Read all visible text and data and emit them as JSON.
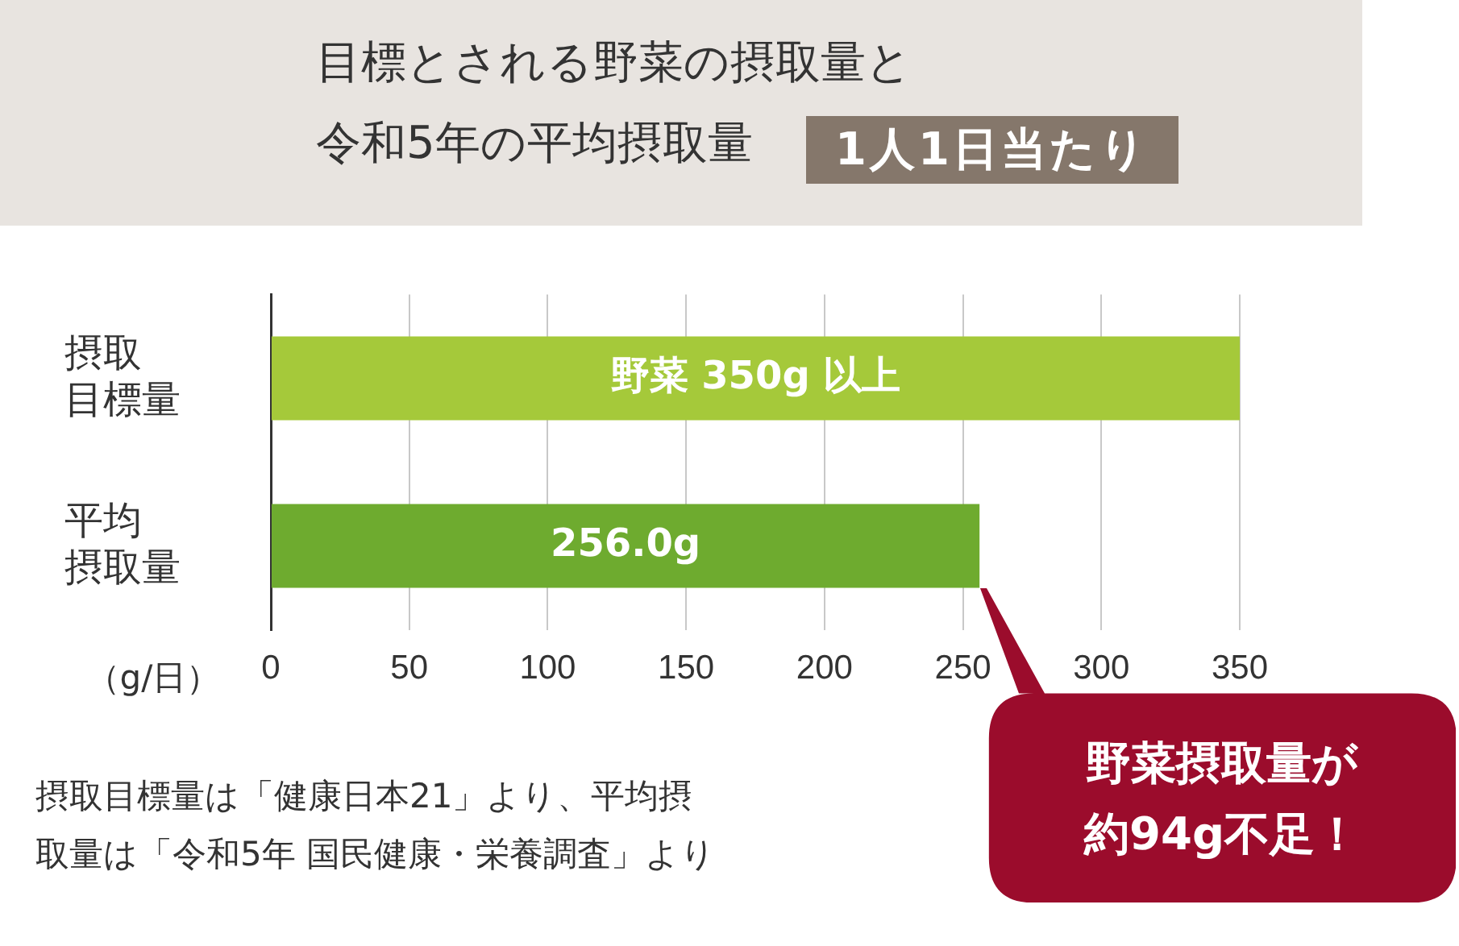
{
  "chart_data": {
    "type": "bar",
    "orientation": "horizontal",
    "title": "目標とされる野菜の摂取量と令和5年の平均摂取量",
    "subtitle": "1人1日当たり",
    "xlabel": "（g/日）",
    "categories": [
      "摂取目標量",
      "平均摂取量"
    ],
    "values": [
      350,
      256.0
    ],
    "colors": [
      "#a5c93a",
      "#6eab2f"
    ],
    "value_labels": [
      "野菜 350g 以上",
      "256.0g"
    ],
    "xlim": [
      0,
      350
    ],
    "xticks": [
      0,
      50,
      100,
      150,
      200,
      250,
      300,
      350
    ],
    "grid": "x",
    "annotations": [
      "野菜摂取量が約94g不足！",
      "摂取目標量は「健康日本21」より、平均摂取量は「令和5年 国民健康・栄養調査」より"
    ]
  }
}
